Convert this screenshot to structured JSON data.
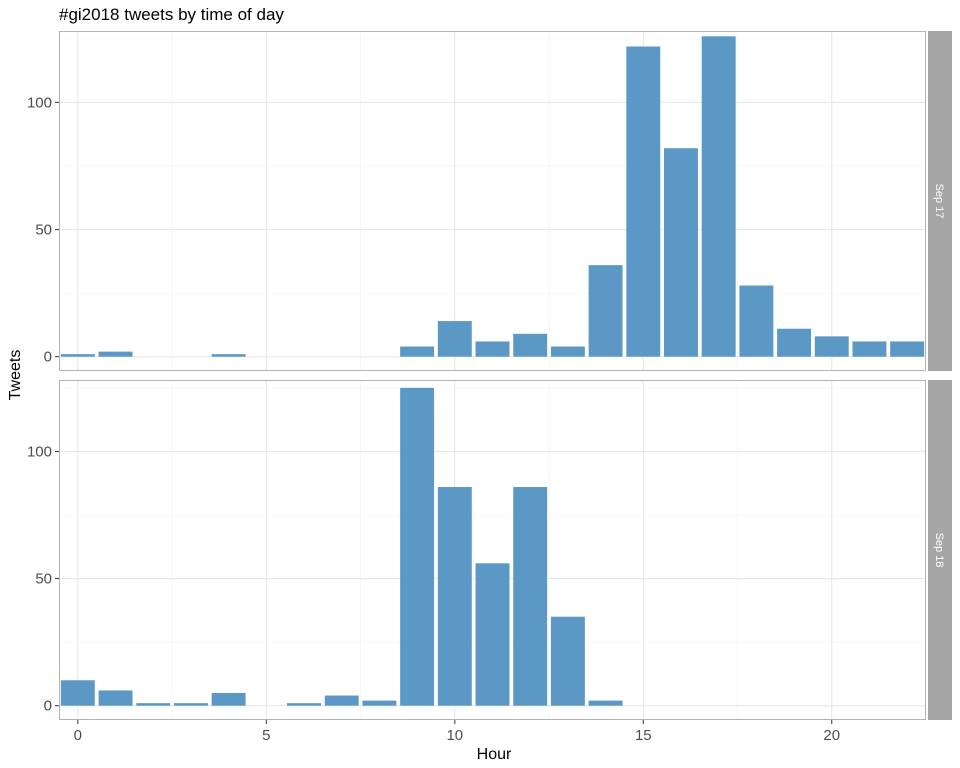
{
  "chart_data": {
    "type": "bar",
    "title": "#gi2018 tweets by time of day",
    "xlabel": "Hour",
    "ylabel": "Tweets",
    "xlim": [
      -0.5,
      22.5
    ],
    "ylim": [
      0,
      125
    ],
    "x_ticks": [
      0,
      5,
      10,
      15,
      20
    ],
    "y_ticks": [
      0,
      50,
      100
    ],
    "grid": true,
    "colors": {
      "bar": "#5b98c6",
      "panel_border": "#b3b3b3",
      "grid_major": "#e5e5e5",
      "grid_minor": "#f2f2f2",
      "strip_fill": "#a6a6a6"
    },
    "facets": [
      {
        "label": "Sep 17",
        "x": [
          0,
          1,
          4,
          9,
          10,
          11,
          12,
          13,
          14,
          15,
          16,
          17,
          18,
          19,
          20,
          21,
          22
        ],
        "values": [
          1,
          2,
          1,
          4,
          14,
          6,
          9,
          4,
          36,
          122,
          82,
          126,
          28,
          11,
          8,
          6,
          6
        ]
      },
      {
        "label": "Sep 18",
        "x": [
          0,
          1,
          2,
          3,
          4,
          6,
          7,
          8,
          9,
          10,
          11,
          12,
          13,
          14
        ],
        "values": [
          10,
          6,
          1,
          1,
          5,
          1,
          4,
          2,
          125,
          86,
          56,
          86,
          35,
          2
        ]
      }
    ]
  }
}
